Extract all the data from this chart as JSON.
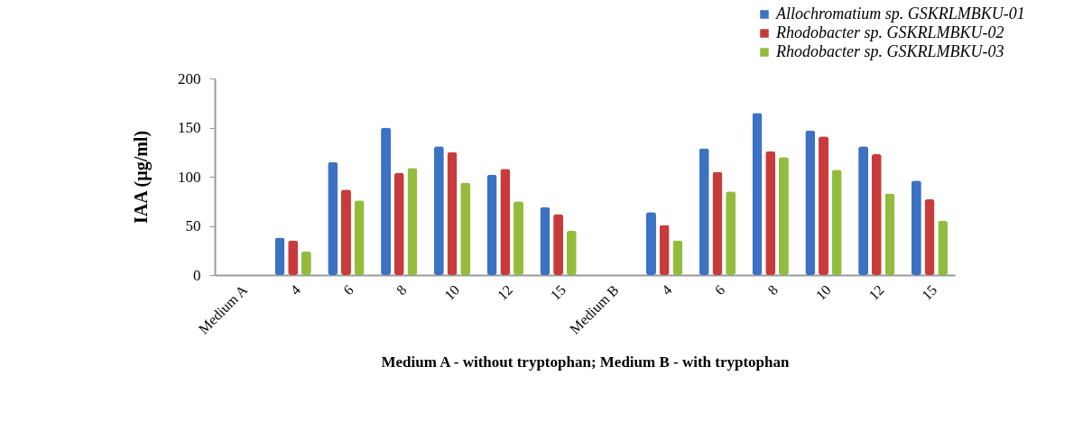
{
  "chart_data": {
    "type": "bar",
    "categories": [
      "Medium A",
      "4",
      "6",
      "8",
      "10",
      "12",
      "15",
      "Medium B",
      "4",
      "6",
      "8",
      "10",
      "12",
      "15"
    ],
    "series": [
      {
        "name": "Allochromatium sp. GSKRLMBKU-01",
        "color": "#3b72c4",
        "values": [
          null,
          38,
          115,
          150,
          131,
          102,
          69,
          null,
          64,
          129,
          165,
          147,
          131,
          96
        ]
      },
      {
        "name": "Rhodobacter sp. GSKRLMBKU-02",
        "color": "#c93b3b",
        "values": [
          null,
          35,
          87,
          104,
          125,
          108,
          62,
          null,
          51,
          105,
          126,
          141,
          123,
          77
        ]
      },
      {
        "name": "Rhodobacter sp. GSKRLMBKU-03",
        "color": "#94bc3c",
        "values": [
          null,
          24,
          76,
          109,
          94,
          75,
          45,
          null,
          35,
          85,
          120,
          107,
          83,
          55
        ]
      }
    ],
    "xlabel": "Medium A - without tryptophan; Medium B - with tryptophan",
    "ylabel": "IAA (µg/ml)",
    "ylim": [
      0,
      200
    ],
    "yticks": [
      0,
      50,
      100,
      150,
      200
    ],
    "grid": false,
    "legend": "top right"
  }
}
